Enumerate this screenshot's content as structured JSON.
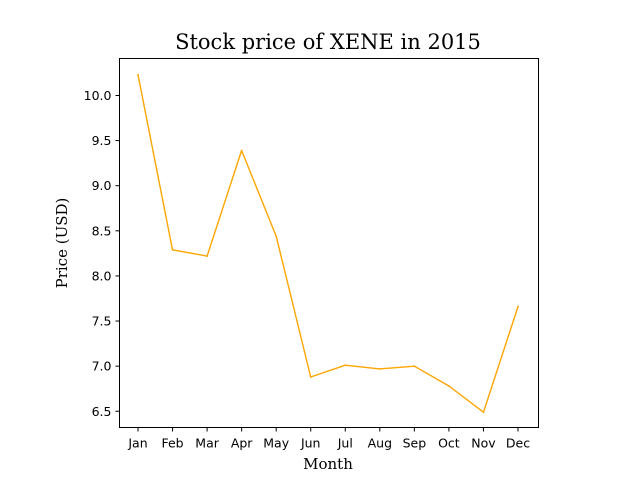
{
  "chart_data": {
    "type": "line",
    "title": "Stock price of XENE in 2015",
    "xlabel": "Month",
    "ylabel": "Price (USD)",
    "categories": [
      "Jan",
      "Feb",
      "Mar",
      "Apr",
      "May",
      "Jun",
      "Jul",
      "Aug",
      "Sep",
      "Oct",
      "Nov",
      "Dec"
    ],
    "series": [
      {
        "values": [
          10.23,
          8.29,
          8.22,
          9.39,
          8.44,
          6.88,
          7.01,
          6.97,
          7.0,
          6.78,
          6.49,
          7.66
        ],
        "color": "#FFA500"
      }
    ],
    "yticks": [
      "6.5",
      "7.0",
      "7.5",
      "8.0",
      "8.5",
      "9.0",
      "9.5",
      "10.0"
    ],
    "ylim": [
      6.32,
      10.41
    ],
    "grid": false,
    "legend": "none"
  }
}
